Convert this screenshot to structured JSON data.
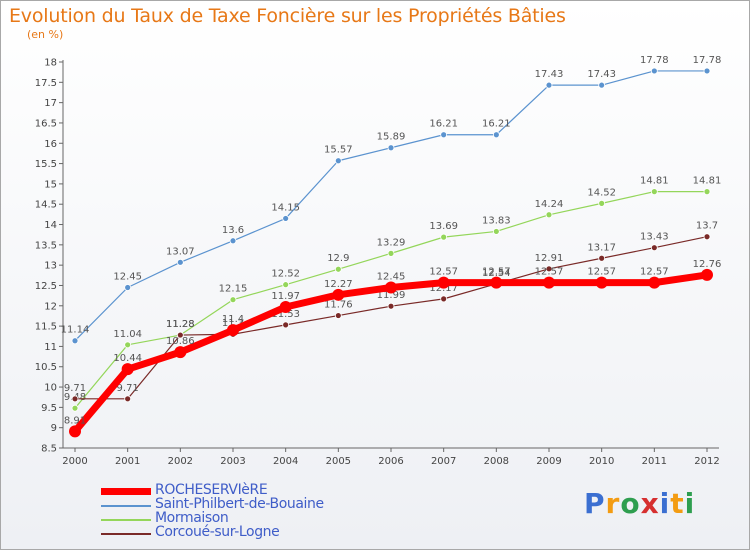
{
  "title": "Evolution du Taux de Taxe Foncière sur les Propriétés Bâties",
  "subtitle": "(en %)",
  "logo": {
    "text": "Proxiti",
    "letters": [
      "P",
      "r",
      "o",
      "x",
      "i",
      "t",
      "i"
    ],
    "colors": [
      "#3b6fd1",
      "#f39c12",
      "#2e9e4f",
      "#d62f2f",
      "#3b6fd1",
      "#f39c12",
      "#2e9e4f"
    ]
  },
  "chart_data": {
    "type": "line",
    "title": "Evolution du Taux de Taxe Foncière sur les Propriétés Bâties",
    "ylabel": "(en %)",
    "xlabel": "",
    "ylim": [
      8.5,
      18
    ],
    "ytick_step": 0.5,
    "x": [
      "2000",
      "2001",
      "2002",
      "2003",
      "2004",
      "2005",
      "2006",
      "2007",
      "2008",
      "2009",
      "2010",
      "2011",
      "2012"
    ],
    "series": [
      {
        "name": "Saint-Philbert-de-Bouaine",
        "color": "#5b93cf",
        "values": [
          11.14,
          12.45,
          13.07,
          13.6,
          14.15,
          15.57,
          15.89,
          16.21,
          16.21,
          17.43,
          17.43,
          17.78,
          17.78
        ]
      },
      {
        "name": "Mormaison",
        "color": "#94d65a",
        "values": [
          9.48,
          11.04,
          11.28,
          12.15,
          12.52,
          12.9,
          13.29,
          13.69,
          13.83,
          14.24,
          14.52,
          14.81,
          14.81
        ]
      },
      {
        "name": "Corcoué-sur-Logne",
        "color": "#7a2a28",
        "values": [
          9.71,
          9.71,
          11.28,
          11.3,
          11.53,
          11.76,
          11.99,
          12.17,
          12.54,
          12.91,
          13.17,
          13.43,
          13.7
        ]
      },
      {
        "name": "ROCHESERVIèRE",
        "color": "#ff0000",
        "values": [
          8.91,
          10.44,
          10.86,
          11.4,
          11.97,
          12.27,
          12.45,
          12.57,
          12.57,
          12.57,
          12.57,
          12.57,
          12.76
        ]
      }
    ],
    "legend": [
      {
        "name": "ROCHESERVIèRE",
        "color": "#ff0000"
      },
      {
        "name": "Saint-Philbert-de-Bouaine",
        "color": "#5b93cf"
      },
      {
        "name": "Mormaison",
        "color": "#94d65a"
      },
      {
        "name": "Corcoué-sur-Logne",
        "color": "#7a2a28"
      }
    ],
    "legend_position": "bottom-left",
    "grid": false
  }
}
